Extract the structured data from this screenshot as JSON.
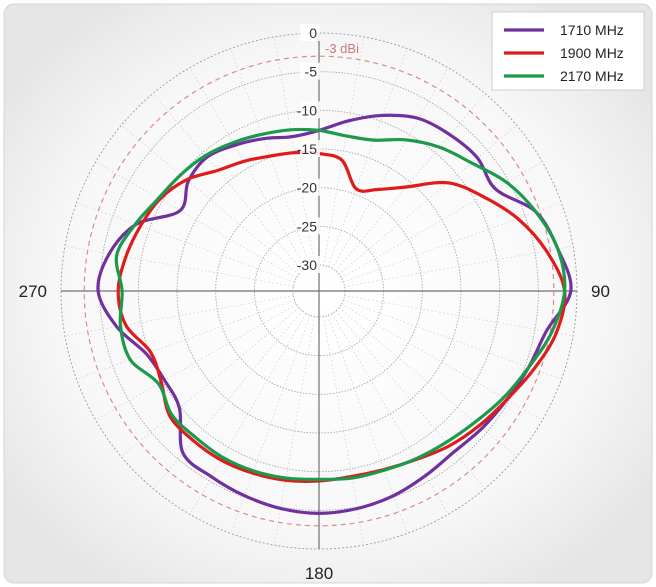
{
  "chart_data": {
    "type": "polar-line",
    "radial_ticks": [
      "0",
      "-5",
      "-10",
      "-15",
      "-20",
      "-25",
      "-30"
    ],
    "radial_values": [
      0,
      -5,
      -10,
      -15,
      -20,
      -25,
      -30
    ],
    "r_range": [
      -30,
      0
    ],
    "angle_labels": [
      {
        "angle": 90,
        "text": "90"
      },
      {
        "angle": 180,
        "text": "180"
      },
      {
        "angle": 270,
        "text": "270"
      }
    ],
    "reference_ring": {
      "value": -3,
      "label": "-3 dBi",
      "color": "#d98c8c"
    },
    "grid": true,
    "legend_position": "top-right",
    "series": [
      {
        "name": "1710 MHz",
        "color": "#7030a0",
        "points": [
          [
            0,
            -12.6
          ],
          [
            10,
            -11.0
          ],
          [
            20,
            -9.2
          ],
          [
            30,
            -7.6
          ],
          [
            40,
            -7.0
          ],
          [
            50,
            -6.6
          ],
          [
            60,
            -7.0
          ],
          [
            70,
            -3.5
          ],
          [
            80,
            -2.0
          ],
          [
            90,
            -0.8
          ],
          [
            100,
            -3.5
          ],
          [
            110,
            -4.5
          ],
          [
            120,
            -5.3
          ],
          [
            130,
            -5.8
          ],
          [
            140,
            -6.2
          ],
          [
            150,
            -5.8
          ],
          [
            160,
            -5.2
          ],
          [
            170,
            -4.8
          ],
          [
            180,
            -4.6
          ],
          [
            190,
            -4.8
          ],
          [
            200,
            -5.2
          ],
          [
            210,
            -5.6
          ],
          [
            220,
            -6.0
          ],
          [
            230,
            -9.8
          ],
          [
            240,
            -10.3
          ],
          [
            250,
            -9.6
          ],
          [
            260,
            -6.8
          ],
          [
            270,
            -4.8
          ],
          [
            280,
            -5.8
          ],
          [
            290,
            -8.2
          ],
          [
            300,
            -12.6
          ],
          [
            310,
            -11.3
          ],
          [
            320,
            -10.8
          ],
          [
            330,
            -11.6
          ],
          [
            340,
            -12.4
          ],
          [
            350,
            -13.1
          ]
        ]
      },
      {
        "name": "1900 MHz",
        "color": "#e01b1b",
        "points": [
          [
            0,
            -15.6
          ],
          [
            10,
            -16.2
          ],
          [
            20,
            -19.3
          ],
          [
            30,
            -18.2
          ],
          [
            40,
            -15.8
          ],
          [
            50,
            -11.6
          ],
          [
            60,
            -8.9
          ],
          [
            70,
            -6.0
          ],
          [
            80,
            -3.5
          ],
          [
            90,
            -1.6
          ],
          [
            100,
            -2.2
          ],
          [
            110,
            -3.8
          ],
          [
            120,
            -5.3
          ],
          [
            130,
            -6.3
          ],
          [
            140,
            -7.2
          ],
          [
            150,
            -8.2
          ],
          [
            160,
            -8.8
          ],
          [
            170,
            -9.0
          ],
          [
            180,
            -8.8
          ],
          [
            190,
            -8.5
          ],
          [
            200,
            -8.3
          ],
          [
            210,
            -8.1
          ],
          [
            220,
            -8.1
          ],
          [
            230,
            -8.2
          ],
          [
            240,
            -9.8
          ],
          [
            250,
            -10.2
          ],
          [
            260,
            -8.0
          ],
          [
            270,
            -7.4
          ],
          [
            280,
            -8.0
          ],
          [
            290,
            -8.8
          ],
          [
            300,
            -9.6
          ],
          [
            310,
            -11.0
          ],
          [
            320,
            -13.0
          ],
          [
            330,
            -14.0
          ],
          [
            340,
            -14.8
          ],
          [
            350,
            -15.2
          ]
        ]
      },
      {
        "name": "2170 MHz",
        "color": "#1a9a4a",
        "points": [
          [
            0,
            -12.6
          ],
          [
            10,
            -13.0
          ],
          [
            20,
            -12.6
          ],
          [
            30,
            -10.8
          ],
          [
            40,
            -9.1
          ],
          [
            50,
            -7.6
          ],
          [
            60,
            -5.3
          ],
          [
            70,
            -3.5
          ],
          [
            80,
            -2.0
          ],
          [
            90,
            -1.6
          ],
          [
            100,
            -2.8
          ],
          [
            110,
            -4.5
          ],
          [
            120,
            -5.8
          ],
          [
            130,
            -7.0
          ],
          [
            140,
            -7.8
          ],
          [
            150,
            -8.3
          ],
          [
            160,
            -8.7
          ],
          [
            170,
            -8.8
          ],
          [
            180,
            -9.0
          ],
          [
            190,
            -8.8
          ],
          [
            200,
            -8.6
          ],
          [
            210,
            -8.5
          ],
          [
            220,
            -8.6
          ],
          [
            230,
            -8.5
          ],
          [
            240,
            -9.4
          ],
          [
            250,
            -7.4
          ],
          [
            260,
            -7.3
          ],
          [
            270,
            -7.9
          ],
          [
            280,
            -6.8
          ],
          [
            290,
            -8.1
          ],
          [
            300,
            -9.4
          ],
          [
            310,
            -10.0
          ],
          [
            320,
            -10.5
          ],
          [
            330,
            -11.2
          ],
          [
            340,
            -11.8
          ],
          [
            350,
            -12.2
          ]
        ]
      }
    ]
  }
}
